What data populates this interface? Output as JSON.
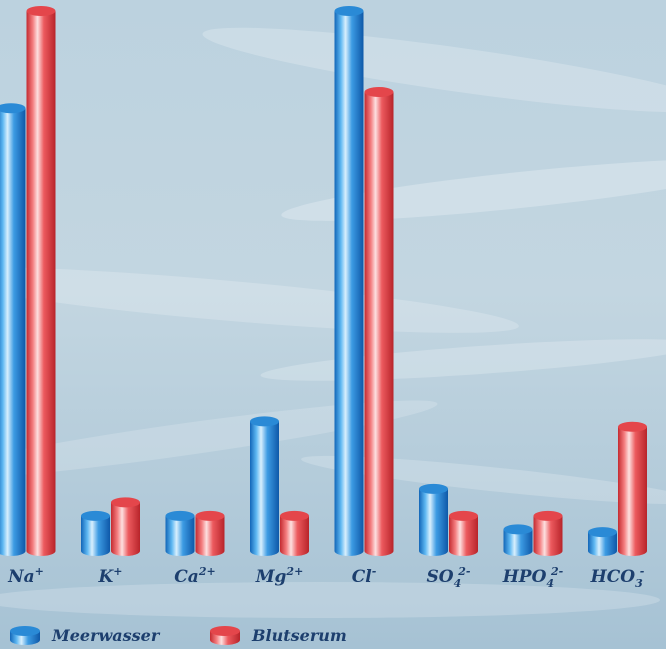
{
  "chart_data": {
    "type": "bar",
    "title": "",
    "xlabel": "",
    "ylabel": "",
    "ylim": [
      0,
      100
    ],
    "categories": [
      {
        "base": "Na",
        "sub": "",
        "sup": "+"
      },
      {
        "base": "K",
        "sub": "",
        "sup": "+"
      },
      {
        "base": "Ca",
        "sub": "",
        "sup": "2+"
      },
      {
        "base": "Mg",
        "sub": "",
        "sup": "2+"
      },
      {
        "base": "Cl",
        "sub": "",
        "sup": "-"
      },
      {
        "base": "SO",
        "sub": "4",
        "sup": "2-"
      },
      {
        "base": "HPO",
        "sub": "4",
        "sup": "2-"
      },
      {
        "base": "HCO",
        "sub": "3",
        "sup": "-"
      }
    ],
    "series": [
      {
        "name": "Meerwasser",
        "color": "#2f8fd6",
        "values": [
          82,
          6.5,
          6.5,
          24,
          100,
          11.5,
          4,
          3.5
        ]
      },
      {
        "name": "Blutserum",
        "color": "#e8474d",
        "values": [
          100,
          9,
          6.5,
          6.5,
          85,
          6.5,
          6.5,
          23
        ]
      }
    ],
    "grid": false,
    "legend": "bottom-left"
  }
}
